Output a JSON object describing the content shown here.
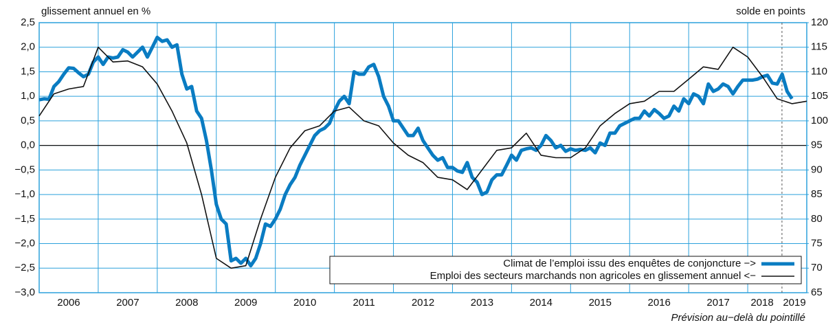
{
  "chart_data": {
    "type": "line",
    "y_label": "glissement annuel en %",
    "y2_label": "solde en points",
    "annotation": "Prévision au−delà du pointillé",
    "forecast_start": 2018.58,
    "xlim": [
      2006,
      2019
    ],
    "xticks": [
      2006,
      2007,
      2008,
      2009,
      2010,
      2011,
      2012,
      2013,
      2014,
      2015,
      2016,
      2017,
      2018,
      2019
    ],
    "ylim": [
      -3.0,
      2.5
    ],
    "yticks": [
      {
        "value": 2.5,
        "label": "2,5"
      },
      {
        "value": 2.0,
        "label": "2,0"
      },
      {
        "value": 1.5,
        "label": "1,5"
      },
      {
        "value": 1.0,
        "label": "1,0"
      },
      {
        "value": 0.5,
        "label": "0,5"
      },
      {
        "value": 0.0,
        "label": "0,0"
      },
      {
        "value": -0.5,
        "label": "−0,5"
      },
      {
        "value": -1.0,
        "label": "−1,0"
      },
      {
        "value": -1.5,
        "label": "−1,5"
      },
      {
        "value": -2.0,
        "label": "−2,0"
      },
      {
        "value": -2.5,
        "label": "−2,5"
      },
      {
        "value": -3.0,
        "label": "−3,0"
      }
    ],
    "y2lim": [
      65,
      120
    ],
    "y2ticks": [
      120,
      115,
      110,
      105,
      100,
      95,
      90,
      85,
      80,
      75,
      70,
      65
    ],
    "grid": true,
    "legend": "lower right",
    "series": [
      {
        "name": "Climat de l’emploi issu des enquêtes de conjoncture −>",
        "color": "#0a7cc2",
        "axis": "y2",
        "x": [
          2006,
          2006.083,
          2006.167,
          2006.25,
          2006.333,
          2006.417,
          2006.5,
          2006.583,
          2006.667,
          2006.75,
          2006.833,
          2006.917,
          2007,
          2007.083,
          2007.167,
          2007.25,
          2007.333,
          2007.417,
          2007.5,
          2007.583,
          2007.667,
          2007.75,
          2007.833,
          2007.917,
          2008,
          2008.083,
          2008.167,
          2008.25,
          2008.333,
          2008.417,
          2008.5,
          2008.583,
          2008.667,
          2008.75,
          2008.833,
          2008.917,
          2009,
          2009.083,
          2009.167,
          2009.25,
          2009.333,
          2009.417,
          2009.5,
          2009.583,
          2009.667,
          2009.75,
          2009.833,
          2009.917,
          2010,
          2010.083,
          2010.167,
          2010.25,
          2010.333,
          2010.417,
          2010.5,
          2010.583,
          2010.667,
          2010.75,
          2010.833,
          2010.917,
          2011,
          2011.083,
          2011.167,
          2011.25,
          2011.333,
          2011.417,
          2011.5,
          2011.583,
          2011.667,
          2011.75,
          2011.833,
          2011.917,
          2012,
          2012.083,
          2012.167,
          2012.25,
          2012.333,
          2012.417,
          2012.5,
          2012.583,
          2012.667,
          2012.75,
          2012.833,
          2012.917,
          2013,
          2013.083,
          2013.167,
          2013.25,
          2013.333,
          2013.417,
          2013.5,
          2013.583,
          2013.667,
          2013.75,
          2013.833,
          2013.917,
          2014,
          2014.083,
          2014.167,
          2014.25,
          2014.333,
          2014.417,
          2014.5,
          2014.583,
          2014.667,
          2014.75,
          2014.833,
          2014.917,
          2015,
          2015.083,
          2015.167,
          2015.25,
          2015.333,
          2015.417,
          2015.5,
          2015.583,
          2015.667,
          2015.75,
          2015.833,
          2015.917,
          2016,
          2016.083,
          2016.167,
          2016.25,
          2016.333,
          2016.417,
          2016.5,
          2016.583,
          2016.667,
          2016.75,
          2016.833,
          2016.917,
          2017,
          2017.083,
          2017.167,
          2017.25,
          2017.333,
          2017.417,
          2017.5,
          2017.583,
          2017.667,
          2017.75,
          2017.833,
          2017.917,
          2018,
          2018.083,
          2018.167,
          2018.25,
          2018.333,
          2018.417,
          2018.5,
          2018.583,
          2018.667,
          2018.75
        ],
        "values": [
          104.3,
          104.5,
          104.4,
          107,
          108,
          109.5,
          110.8,
          110.7,
          109.8,
          109,
          109.5,
          112,
          113,
          111.5,
          113,
          112.8,
          113,
          114.5,
          114,
          113,
          114,
          115,
          113,
          115,
          117,
          116.2,
          116.5,
          115,
          115.5,
          109.5,
          106.5,
          107,
          102,
          100.5,
          96,
          90,
          83,
          80,
          79,
          71.5,
          72,
          71,
          72,
          70.5,
          72,
          75,
          79,
          78.5,
          80,
          82,
          85,
          87,
          88.5,
          91,
          93,
          95,
          97,
          98,
          98.5,
          99.5,
          102,
          104,
          105,
          103.5,
          110,
          109.5,
          109.5,
          111,
          111.5,
          109,
          105,
          103,
          100,
          100,
          98.5,
          97,
          97,
          98.5,
          96,
          94.5,
          93,
          92,
          92.5,
          90.5,
          90.5,
          89.8,
          89.5,
          91.5,
          88.5,
          87.5,
          85,
          85.5,
          88,
          89,
          89,
          91,
          93,
          92,
          94,
          94.3,
          94.5,
          94,
          95,
          97,
          96,
          94.5,
          95,
          93.8,
          94.3,
          94,
          94.2,
          94,
          94.5,
          93.5,
          95.5,
          95,
          97.5,
          97.5,
          99,
          99.5,
          100,
          100.5,
          100.5,
          102,
          101,
          102.3,
          101.5,
          100.5,
          101,
          103,
          102,
          104.5,
          103.5,
          105.5,
          105,
          103.5,
          107.5,
          106,
          106.5,
          107.5,
          107,
          105.5,
          107,
          108.3,
          108.3,
          108.3,
          108.5,
          109,
          109.3,
          107.7,
          107.5,
          109.5,
          106,
          104.5
        ]
      },
      {
        "name": "Emploi des secteurs marchands non agricoles en glissement annuel <−",
        "color": "#111111",
        "x": [
          2006,
          2006.25,
          2006.5,
          2006.75,
          2007,
          2007.25,
          2007.5,
          2007.75,
          2008,
          2008.25,
          2008.5,
          2008.75,
          2009,
          2009.25,
          2009.5,
          2009.75,
          2010,
          2010.25,
          2010.5,
          2010.75,
          2011,
          2011.25,
          2011.5,
          2011.75,
          2012,
          2012.25,
          2012.5,
          2012.75,
          2013,
          2013.25,
          2013.5,
          2013.75,
          2014,
          2014.25,
          2014.5,
          2014.75,
          2015,
          2015.25,
          2015.5,
          2015.75,
          2016,
          2016.25,
          2016.5,
          2016.75,
          2017,
          2017.25,
          2017.5,
          2017.75,
          2018,
          2018.25,
          2018.5,
          2018.75,
          2019
        ],
        "values": [
          0.6,
          1.05,
          1.15,
          1.2,
          2.0,
          1.7,
          1.72,
          1.6,
          1.25,
          0.7,
          0.05,
          -1.0,
          -2.3,
          -2.5,
          -2.45,
          -1.5,
          -0.65,
          -0.05,
          0.3,
          0.4,
          0.7,
          0.78,
          0.5,
          0.4,
          0.05,
          -0.2,
          -0.35,
          -0.65,
          -0.7,
          -0.9,
          -0.5,
          -0.1,
          -0.05,
          0.25,
          -0.2,
          -0.25,
          -0.25,
          -0.05,
          0.4,
          0.65,
          0.85,
          0.9,
          1.1,
          1.1,
          1.35,
          1.6,
          1.55,
          2.0,
          1.8,
          1.4,
          0.95,
          0.85,
          0.9
        ]
      }
    ]
  }
}
